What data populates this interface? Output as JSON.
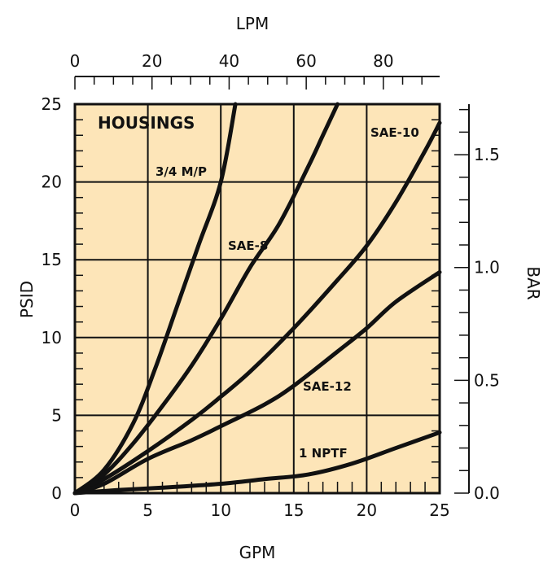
{
  "chart_data": {
    "type": "line",
    "title": "HOUSINGS",
    "xlabel": "GPM",
    "ylabel": "PSID",
    "top_axis_label": "LPM",
    "right_axis_label": "BAR",
    "xlim": [
      0,
      25
    ],
    "ylim": [
      0,
      25
    ],
    "top_xlim": [
      0,
      94.6
    ],
    "right_ylim": [
      0,
      1.724
    ],
    "x_ticks": [
      "0",
      "5",
      "10",
      "15",
      "20",
      "25"
    ],
    "y_ticks": [
      "0",
      "5",
      "10",
      "15",
      "20",
      "25"
    ],
    "top_ticks": [
      "0",
      "20",
      "40",
      "60",
      "80"
    ],
    "right_ticks": [
      "0.0",
      "0.5",
      "1.0",
      "1.5"
    ],
    "grid": true,
    "background_color": "#fde5b8",
    "line_color": "#111111",
    "series": [
      {
        "name": "3/4 M/P",
        "points": [
          [
            0,
            0
          ],
          [
            2,
            1.5
          ],
          [
            4,
            4.5
          ],
          [
            5.5,
            8
          ],
          [
            7,
            12
          ],
          [
            8.5,
            16
          ],
          [
            10,
            20
          ],
          [
            11,
            25
          ]
        ]
      },
      {
        "name": "SAE-8",
        "points": [
          [
            0,
            0
          ],
          [
            2,
            1.2
          ],
          [
            4,
            3.2
          ],
          [
            6,
            5.6
          ],
          [
            8,
            8.2
          ],
          [
            10,
            11.2
          ],
          [
            12,
            14.5
          ],
          [
            14,
            17.3
          ],
          [
            16,
            21
          ],
          [
            17,
            23
          ],
          [
            18,
            25
          ]
        ]
      },
      {
        "name": "SAE-10",
        "points": [
          [
            0,
            0
          ],
          [
            2,
            0.9
          ],
          [
            5,
            2.7
          ],
          [
            8,
            4.7
          ],
          [
            10,
            6.2
          ],
          [
            12,
            7.8
          ],
          [
            15,
            10.6
          ],
          [
            18,
            13.7
          ],
          [
            20,
            15.9
          ],
          [
            22,
            18.7
          ],
          [
            24,
            22
          ],
          [
            25,
            23.8
          ]
        ]
      },
      {
        "name": "SAE-12",
        "points": [
          [
            0,
            0
          ],
          [
            2,
            0.6
          ],
          [
            5,
            2.2
          ],
          [
            8,
            3.4
          ],
          [
            10,
            4.3
          ],
          [
            13,
            5.7
          ],
          [
            15,
            6.9
          ],
          [
            18,
            9.1
          ],
          [
            20,
            10.6
          ],
          [
            22,
            12.3
          ],
          [
            25,
            14.2
          ]
        ]
      },
      {
        "name": "1 NPTF",
        "points": [
          [
            0,
            0
          ],
          [
            3,
            0.2
          ],
          [
            6,
            0.35
          ],
          [
            10,
            0.6
          ],
          [
            13,
            0.9
          ],
          [
            16,
            1.2
          ],
          [
            19,
            1.9
          ],
          [
            22,
            2.9
          ],
          [
            25,
            3.9
          ]
        ]
      }
    ],
    "curve_labels": [
      "3/4 M/P",
      "SAE-8",
      "SAE-10",
      "SAE-12",
      "1 NPTF"
    ]
  }
}
